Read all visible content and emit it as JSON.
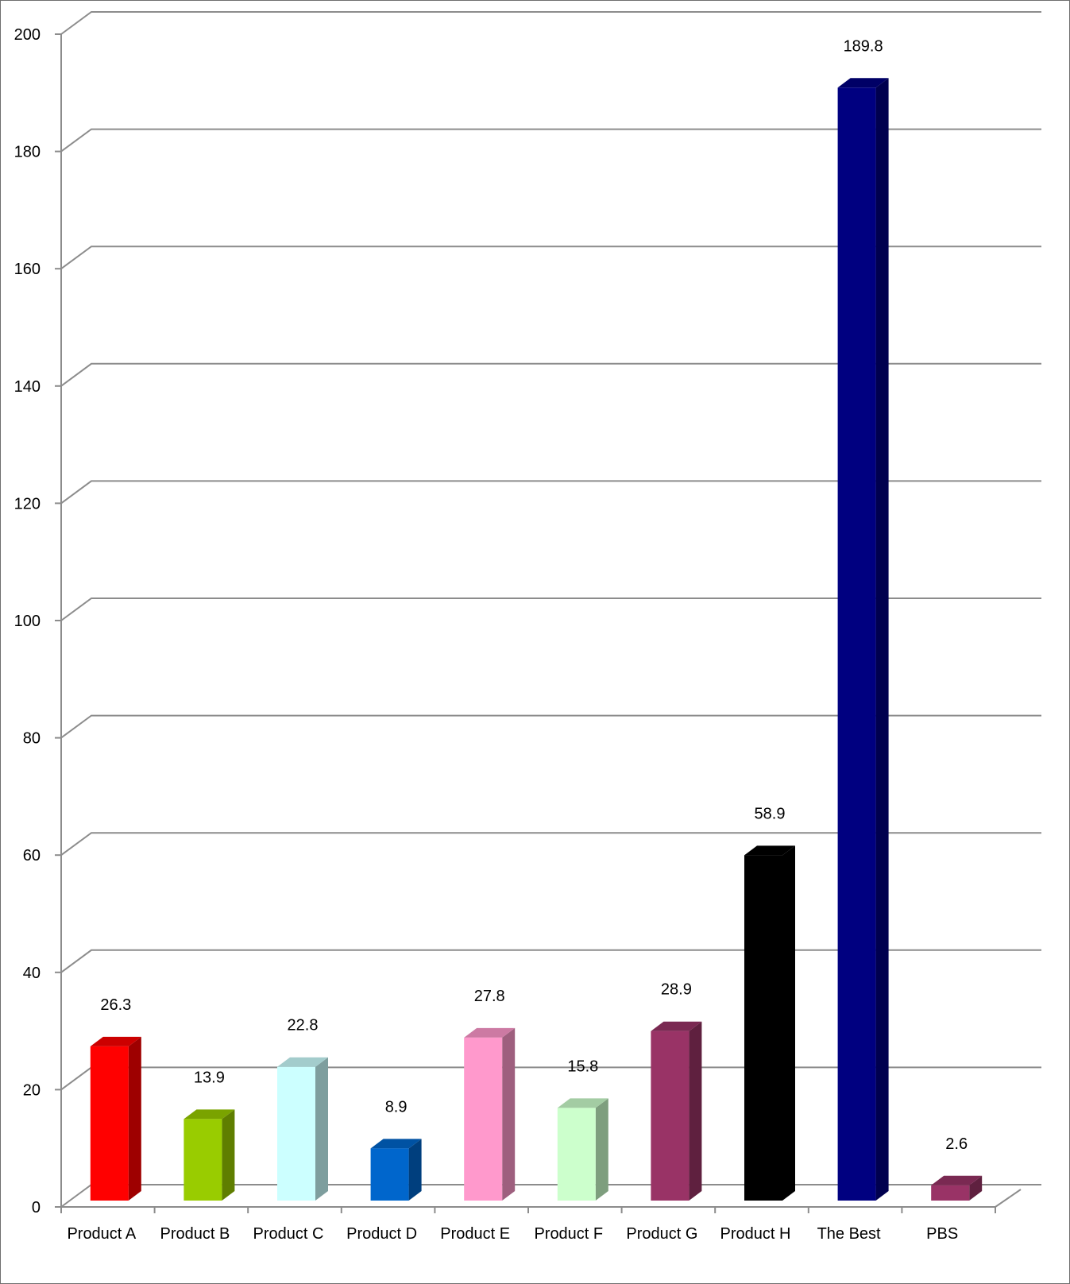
{
  "chart_data": {
    "type": "bar",
    "title": "",
    "xlabel": "",
    "ylabel": "",
    "ylim": [
      0,
      200
    ],
    "yticks": [
      0,
      20,
      40,
      60,
      80,
      100,
      120,
      140,
      160,
      180,
      200
    ],
    "grid": true,
    "legend": "none",
    "categories": [
      "Product A",
      "Product B",
      "Product C",
      "Product D",
      "Product E",
      "Product F",
      "Product G",
      "Product H",
      "The Best",
      "PBS"
    ],
    "values": [
      26.3,
      13.9,
      22.8,
      8.9,
      27.8,
      15.8,
      28.9,
      58.9,
      189.8,
      2.6
    ],
    "value_labels": [
      "26.3",
      "13.9",
      "22.8",
      "8.9",
      "27.8",
      "15.8",
      "28.9",
      "58.9",
      "189.8",
      "2.6"
    ],
    "colors": [
      "#ff0000",
      "#99cc00",
      "#ccffff",
      "#0066cc",
      "#ff99cc",
      "#ccffcc",
      "#993366",
      "#000000",
      "#000080",
      "#993366"
    ]
  }
}
